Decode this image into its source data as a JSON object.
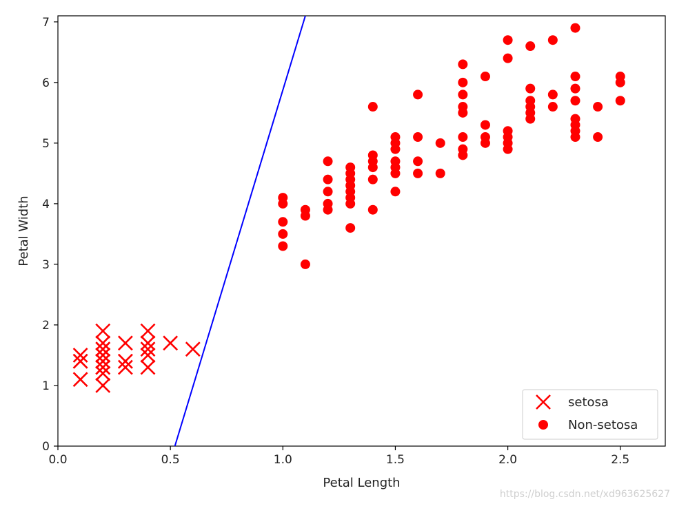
{
  "chart_data": {
    "type": "scatter",
    "title": "",
    "xlabel": "Petal Length",
    "ylabel": "Petal Width",
    "xlim": [
      0.0,
      2.7
    ],
    "ylim": [
      0,
      7.1
    ],
    "xticks": [
      0.0,
      0.5,
      1.0,
      1.5,
      2.0,
      2.5
    ],
    "xtick_labels": [
      "0.0",
      "0.5",
      "1.0",
      "1.5",
      "2.0",
      "2.5"
    ],
    "yticks": [
      0,
      1,
      2,
      3,
      4,
      5,
      6,
      7
    ],
    "ytick_labels": [
      "0",
      "1",
      "2",
      "3",
      "4",
      "5",
      "6",
      "7"
    ],
    "grid": false,
    "legend_position": "lower-right",
    "series": [
      {
        "name": "setosa",
        "marker": "x",
        "color": "#ff0000",
        "points": [
          [
            0.1,
            1.5
          ],
          [
            0.1,
            1.4
          ],
          [
            0.1,
            1.4
          ],
          [
            0.1,
            1.1
          ],
          [
            0.2,
            1.9
          ],
          [
            0.2,
            1.7
          ],
          [
            0.2,
            1.6
          ],
          [
            0.2,
            1.6
          ],
          [
            0.2,
            1.5
          ],
          [
            0.2,
            1.5
          ],
          [
            0.2,
            1.4
          ],
          [
            0.2,
            1.4
          ],
          [
            0.2,
            1.4
          ],
          [
            0.2,
            1.3
          ],
          [
            0.2,
            1.3
          ],
          [
            0.2,
            1.2
          ],
          [
            0.2,
            1.2
          ],
          [
            0.2,
            1.0
          ],
          [
            0.3,
            1.7
          ],
          [
            0.3,
            1.4
          ],
          [
            0.3,
            1.4
          ],
          [
            0.3,
            1.3
          ],
          [
            0.4,
            1.9
          ],
          [
            0.4,
            1.7
          ],
          [
            0.4,
            1.6
          ],
          [
            0.4,
            1.5
          ],
          [
            0.4,
            1.3
          ],
          [
            0.5,
            1.7
          ],
          [
            0.6,
            1.6
          ]
        ]
      },
      {
        "name": "Non-setosa",
        "marker": "o",
        "color": "#ff0000",
        "points": [
          [
            1.0,
            4.1
          ],
          [
            1.0,
            4.0
          ],
          [
            1.0,
            3.7
          ],
          [
            1.0,
            3.5
          ],
          [
            1.0,
            3.3
          ],
          [
            1.1,
            3.9
          ],
          [
            1.1,
            3.8
          ],
          [
            1.1,
            3.0
          ],
          [
            1.2,
            4.7
          ],
          [
            1.2,
            4.4
          ],
          [
            1.2,
            4.2
          ],
          [
            1.2,
            4.0
          ],
          [
            1.2,
            3.9
          ],
          [
            1.3,
            4.6
          ],
          [
            1.3,
            4.5
          ],
          [
            1.3,
            4.4
          ],
          [
            1.3,
            4.3
          ],
          [
            1.3,
            4.2
          ],
          [
            1.3,
            4.1
          ],
          [
            1.3,
            4.0
          ],
          [
            1.3,
            3.6
          ],
          [
            1.4,
            5.6
          ],
          [
            1.4,
            4.8
          ],
          [
            1.4,
            4.7
          ],
          [
            1.4,
            4.6
          ],
          [
            1.4,
            4.4
          ],
          [
            1.4,
            3.9
          ],
          [
            1.5,
            5.1
          ],
          [
            1.5,
            5.0
          ],
          [
            1.5,
            4.9
          ],
          [
            1.5,
            4.7
          ],
          [
            1.5,
            4.6
          ],
          [
            1.5,
            4.5
          ],
          [
            1.5,
            4.2
          ],
          [
            1.6,
            5.8
          ],
          [
            1.6,
            5.1
          ],
          [
            1.6,
            4.7
          ],
          [
            1.6,
            4.5
          ],
          [
            1.7,
            5.0
          ],
          [
            1.7,
            4.5
          ],
          [
            1.8,
            6.3
          ],
          [
            1.8,
            6.0
          ],
          [
            1.8,
            5.8
          ],
          [
            1.8,
            5.6
          ],
          [
            1.8,
            5.5
          ],
          [
            1.8,
            5.1
          ],
          [
            1.8,
            4.9
          ],
          [
            1.8,
            4.8
          ],
          [
            1.9,
            6.1
          ],
          [
            1.9,
            5.3
          ],
          [
            1.9,
            5.1
          ],
          [
            1.9,
            5.0
          ],
          [
            2.0,
            6.7
          ],
          [
            2.0,
            6.4
          ],
          [
            2.0,
            5.2
          ],
          [
            2.0,
            5.1
          ],
          [
            2.0,
            5.0
          ],
          [
            2.0,
            4.9
          ],
          [
            2.1,
            6.6
          ],
          [
            2.1,
            5.9
          ],
          [
            2.1,
            5.7
          ],
          [
            2.1,
            5.6
          ],
          [
            2.1,
            5.5
          ],
          [
            2.1,
            5.4
          ],
          [
            2.2,
            6.7
          ],
          [
            2.2,
            5.8
          ],
          [
            2.2,
            5.6
          ],
          [
            2.3,
            6.9
          ],
          [
            2.3,
            6.1
          ],
          [
            2.3,
            5.9
          ],
          [
            2.3,
            5.7
          ],
          [
            2.3,
            5.4
          ],
          [
            2.3,
            5.3
          ],
          [
            2.3,
            5.2
          ],
          [
            2.3,
            5.1
          ],
          [
            2.4,
            5.6
          ],
          [
            2.4,
            5.1
          ],
          [
            2.5,
            6.1
          ],
          [
            2.5,
            6.0
          ],
          [
            2.5,
            5.7
          ]
        ]
      }
    ],
    "decision_boundary": {
      "color": "#0000ff",
      "points": [
        [
          0.52,
          0
        ],
        [
          1.1,
          7.1
        ]
      ]
    },
    "watermark": "https://blog.csdn.net/xd963625627"
  }
}
